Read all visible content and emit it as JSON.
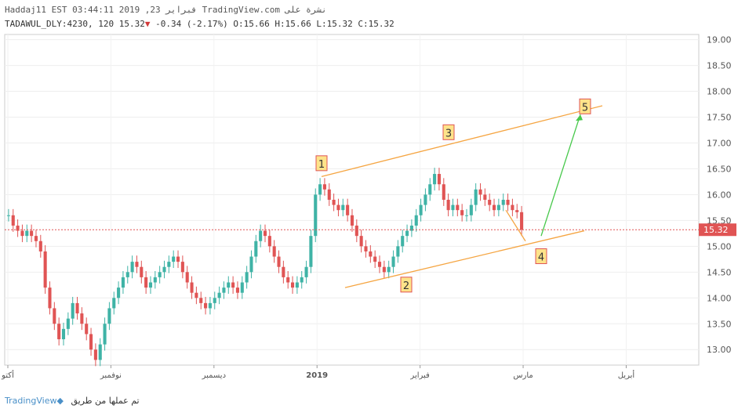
{
  "header": {
    "line1": "Haddaj11 EST 03:44:11 2019 ,23 فبراير TradingView.com نشرة على",
    "symbol": "TADAWUL_DLY:4230, 120",
    "last": "15.32",
    "change": "-0.34 (-2.17%)",
    "ohlc": "O:15.66 H:15.66 L:15.32 C:15.32"
  },
  "footer": {
    "brand": "TradingView",
    "credit": "تم عملها من طريق"
  },
  "colors": {
    "up": "#3fb3a6",
    "down": "#e05454",
    "channel": "#f5a542",
    "projection": "#46c84a",
    "last_line": "#e05454",
    "label_bg": "#fde38a",
    "label_border": "#e05454"
  },
  "chart_data": {
    "type": "candlestick",
    "ylim": [
      12.7,
      19.1
    ],
    "y_ticks": [
      "19.00",
      "18.50",
      "18.00",
      "17.50",
      "17.00",
      "16.50",
      "16.00",
      "15.50",
      "15.00",
      "14.50",
      "14.00",
      "13.50",
      "13.00"
    ],
    "x_ticks": [
      "أكتو",
      "نوفمبر",
      "ديسمبر",
      "2019",
      "فبراير",
      "مارس",
      "أبريل"
    ],
    "last_price": "15.32",
    "closes": [
      15.6,
      15.4,
      15.3,
      15.2,
      15.3,
      15.2,
      15.1,
      14.9,
      14.2,
      13.8,
      13.5,
      13.2,
      13.4,
      13.6,
      13.9,
      13.7,
      13.5,
      13.3,
      13.0,
      12.8,
      13.1,
      13.5,
      13.8,
      14.0,
      14.2,
      14.4,
      14.5,
      14.7,
      14.6,
      14.4,
      14.2,
      14.3,
      14.4,
      14.5,
      14.6,
      14.7,
      14.8,
      14.7,
      14.5,
      14.3,
      14.1,
      14.0,
      13.9,
      13.8,
      13.9,
      14.0,
      14.1,
      14.2,
      14.3,
      14.2,
      14.1,
      14.3,
      14.5,
      14.8,
      15.1,
      15.3,
      15.2,
      15.0,
      14.8,
      14.6,
      14.4,
      14.3,
      14.2,
      14.3,
      14.4,
      14.6,
      15.2,
      16.0,
      16.2,
      16.1,
      15.9,
      15.8,
      15.7,
      15.8,
      15.6,
      15.4,
      15.2,
      15.0,
      14.9,
      14.8,
      14.7,
      14.6,
      14.5,
      14.6,
      14.8,
      15.0,
      15.2,
      15.3,
      15.4,
      15.6,
      15.8,
      16.0,
      16.2,
      16.4,
      16.2,
      15.9,
      15.7,
      15.8,
      15.7,
      15.6,
      15.6,
      15.8,
      16.1,
      16.0,
      15.9,
      15.8,
      15.7,
      15.8,
      15.9,
      15.8,
      15.7,
      15.66,
      15.32
    ],
    "annotations": [
      {
        "label": "1",
        "price": 16.6
      },
      {
        "label": "2",
        "price": 14.25
      },
      {
        "label": "3",
        "price": 17.2
      },
      {
        "label": "4",
        "price": 14.8
      },
      {
        "label": "5",
        "price": 17.7
      }
    ]
  }
}
